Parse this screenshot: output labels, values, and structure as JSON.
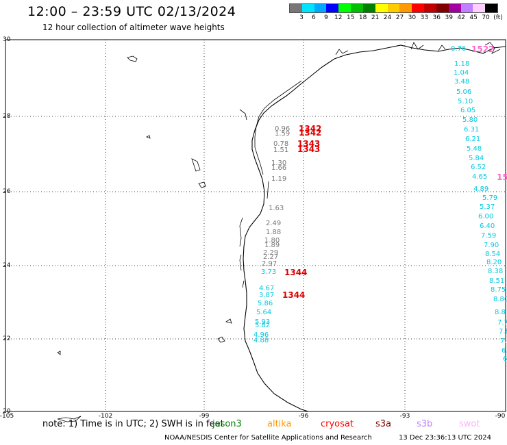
{
  "header": {
    "title": "12:00 – 23:59 UTC 02/13/2024",
    "subtitle": "12 hour collection of altimeter wave heights"
  },
  "legend": {
    "colors": [
      "#777777",
      "#00e5ff",
      "#00a8ff",
      "#0000ff",
      "#00ff00",
      "#00c000",
      "#008000",
      "#ffff00",
      "#ffcc00",
      "#ff9900",
      "#ff0000",
      "#c00000",
      "#800000",
      "#a000a0",
      "#c080ff",
      "#ffd0ff",
      "#000000"
    ],
    "labels": [
      "3",
      "6",
      "9",
      "12",
      "15",
      "18",
      "21",
      "24",
      "27",
      "30",
      "33",
      "36",
      "39",
      "42",
      "45",
      "70",
      "(ft)"
    ]
  },
  "map": {
    "lat_labels": [
      "30",
      "28",
      "26",
      "24",
      "22",
      "20"
    ],
    "lon_labels": [
      "-105",
      "-102",
      "-99",
      "-96",
      "-93",
      "-90"
    ],
    "obs_gray": [
      "0.96",
      "1.59",
      "0.78",
      "1.51",
      "1.30",
      "1.66",
      "1.19",
      "1.63",
      "2.49",
      "1.88",
      "1.80",
      "1.89",
      "2.29",
      "2.27",
      "2.97"
    ],
    "obs_cyan_coast": [
      "3.73",
      "4.67",
      "3.87",
      "5.86",
      "5.64",
      "5.93",
      "5.82",
      "4.96",
      "4.88"
    ],
    "obs_cyan_east": [
      "0.76",
      "1.18",
      "1.04",
      "3.48",
      "5.06",
      "5.10",
      "6.05",
      "5.80",
      "6.31",
      "6.21",
      "5.48",
      "5.84",
      "6.52",
      "4.65",
      "4.89",
      "5.79",
      "5.37",
      "6.00",
      "6.40",
      "7.59",
      "7.90",
      "8.54",
      "8.20",
      "8.38",
      "8.51",
      "8.75",
      "8.80",
      "8.8",
      "7.7",
      "7.8",
      "7.",
      "6.",
      "6"
    ],
    "pass_red": [
      "1342",
      "1342",
      "1343",
      "1343",
      "1344",
      "1344"
    ],
    "pass_pink": [
      "1522",
      "15"
    ]
  },
  "note": {
    "text": "note:  1) Time is in UTC; 2) SWH is in feet",
    "satellites": [
      {
        "name": "jason3",
        "color": "#008000"
      },
      {
        "name": "altika",
        "color": "#ff9900"
      },
      {
        "name": "cryosat",
        "color": "#ff0000"
      },
      {
        "name": "s3a",
        "color": "#800000"
      },
      {
        "name": "s3b",
        "color": "#c080ff"
      },
      {
        "name": "swot",
        "color": "#ffb0ff"
      }
    ]
  },
  "footer": {
    "credit": "NOAA/NESDIS Center for Satellite Applications and Research",
    "timestamp": "13 Dec 23:36:13 UTC 2024"
  }
}
